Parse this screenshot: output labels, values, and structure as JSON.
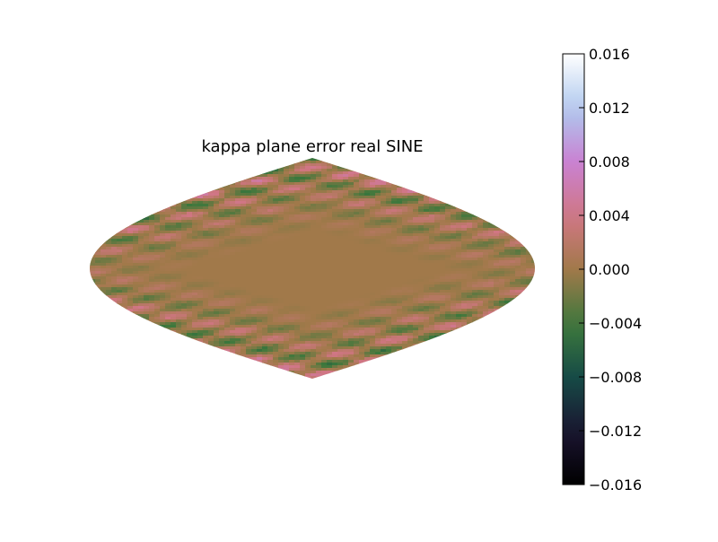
{
  "chart_data": {
    "type": "heatmap",
    "title": "kappa plane error real SINE",
    "projection": "sinusoidal",
    "colormap": "cubehelix",
    "colorbar": {
      "vmin": -0.016,
      "vmax": 0.016,
      "ticks": [
        0.016,
        0.012,
        0.008,
        0.004,
        0.0,
        -0.004,
        -0.008,
        -0.012,
        -0.016
      ],
      "tick_labels": [
        "0.016",
        "0.012",
        "0.008",
        "0.004",
        "0.000",
        "−0.004",
        "−0.008",
        "−0.012",
        "−0.016"
      ],
      "placement": "right"
    },
    "value_range_displayed": [
      -0.009,
      0.009
    ]
  }
}
